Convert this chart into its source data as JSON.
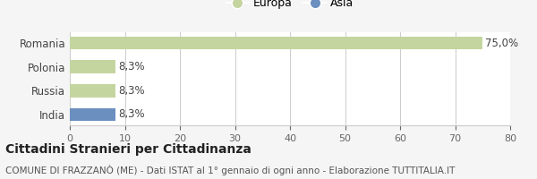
{
  "categories": [
    "Romania",
    "Polonia",
    "Russia",
    "India"
  ],
  "values": [
    75.0,
    8.3,
    8.3,
    8.3
  ],
  "bar_colors": [
    "#c5d5a0",
    "#c5d5a0",
    "#c5d5a0",
    "#6b8fbf"
  ],
  "bar_labels": [
    "75,0%",
    "8,3%",
    "8,3%",
    "8,3%"
  ],
  "xlim": [
    0,
    80
  ],
  "xticks": [
    0,
    10,
    20,
    30,
    40,
    50,
    60,
    70,
    80
  ],
  "legend": [
    {
      "label": "Europa",
      "color": "#c5d5a0"
    },
    {
      "label": "Asia",
      "color": "#6b8fbf"
    }
  ],
  "title": "Cittadini Stranieri per Cittadinanza",
  "subtitle": "COMUNE DI FRAZZANÒ (ME) - Dati ISTAT al 1° gennaio di ogni anno - Elaborazione TUTTITALIA.IT",
  "bg_color": "#f5f5f5",
  "plot_bg_color": "#ffffff",
  "grid_color": "#cccccc",
  "title_fontsize": 10,
  "subtitle_fontsize": 7.5,
  "label_fontsize": 8.5,
  "tick_fontsize": 8,
  "legend_fontsize": 9
}
